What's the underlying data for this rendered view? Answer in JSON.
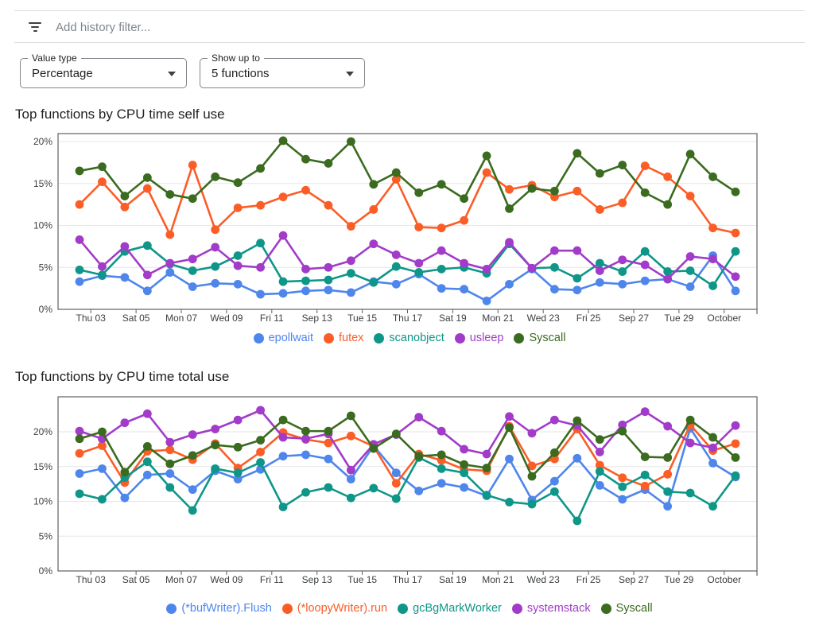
{
  "filter_bar": {
    "icon": "filter-list-icon",
    "placeholder": "Add history filter..."
  },
  "controls": {
    "value_type": {
      "label": "Value type",
      "value": "Percentage"
    },
    "show_up_to": {
      "label": "Show up to",
      "value": "5 functions"
    }
  },
  "chart_data": [
    {
      "type": "line",
      "title": "Top functions by CPU time self use",
      "x_tick_labels": [
        "Thu 03",
        "Sat 05",
        "Mon 07",
        "Wed 09",
        "Fri 11",
        "Sep 13",
        "Tue 15",
        "Thu 17",
        "Sat 19",
        "Mon 21",
        "Wed 23",
        "Fri 25",
        "Sep 27",
        "Tue 29",
        "October"
      ],
      "ytick_labels": [
        "0%",
        "5%",
        "10%",
        "15%",
        "20%"
      ],
      "yticks": [
        0,
        5,
        10,
        15,
        20
      ],
      "ylim": [
        0,
        20.95
      ],
      "grid": true,
      "legend_position": "bottom",
      "series": [
        {
          "name": "epollwait",
          "color": "#4E86EC",
          "values": [
            3.3,
            4.0,
            3.8,
            2.2,
            4.4,
            2.7,
            3.1,
            3.0,
            1.8,
            1.9,
            2.2,
            2.3,
            2.0,
            3.3,
            3.0,
            4.2,
            2.5,
            2.4,
            1.0,
            3.0,
            4.8,
            2.4,
            2.3,
            3.2,
            3.0,
            3.4,
            3.6,
            2.7,
            6.4,
            2.2
          ]
        },
        {
          "name": "futex",
          "color": "#FB5D27",
          "values": [
            12.5,
            15.2,
            12.2,
            14.4,
            8.9,
            17.2,
            9.5,
            12.1,
            12.4,
            13.4,
            14.2,
            12.4,
            9.9,
            11.9,
            15.5,
            9.8,
            9.7,
            10.6,
            16.3,
            14.3,
            14.8,
            13.4,
            14.1,
            11.9,
            12.7,
            17.1,
            15.8,
            13.5,
            9.7,
            9.1
          ]
        },
        {
          "name": "scanobject",
          "color": "#0E9688",
          "values": [
            4.7,
            4.1,
            6.9,
            7.6,
            5.4,
            4.6,
            5.1,
            6.4,
            7.9,
            3.3,
            3.4,
            3.5,
            4.3,
            3.2,
            5.1,
            4.4,
            4.8,
            5.0,
            4.3,
            7.8,
            4.9,
            5.0,
            3.7,
            5.5,
            4.5,
            6.9,
            4.5,
            4.6,
            2.8,
            6.9
          ]
        },
        {
          "name": "usleep",
          "color": "#A23BC9",
          "values": [
            8.3,
            5.1,
            7.5,
            4.1,
            5.5,
            6.0,
            7.4,
            5.2,
            5.0,
            8.8,
            4.8,
            5.0,
            5.8,
            7.8,
            6.5,
            5.5,
            7.0,
            5.5,
            4.8,
            8.0,
            4.9,
            7.0,
            7.0,
            4.6,
            5.9,
            5.3,
            3.6,
            6.3,
            6.0,
            3.9
          ]
        },
        {
          "name": "Syscall",
          "color": "#3A6B1F",
          "values": [
            16.5,
            17.0,
            13.5,
            15.7,
            13.7,
            13.2,
            15.8,
            15.1,
            16.8,
            20.1,
            17.9,
            17.4,
            20.0,
            14.9,
            16.3,
            13.9,
            14.9,
            13.2,
            18.3,
            12.0,
            14.4,
            14.1,
            18.6,
            16.2,
            17.2,
            13.9,
            12.5,
            18.5,
            15.8,
            14.0
          ]
        }
      ]
    },
    {
      "type": "line",
      "title": "Top functions by CPU time total use",
      "x_tick_labels": [
        "Thu 03",
        "Sat 05",
        "Mon 07",
        "Wed 09",
        "Fri 11",
        "Sep 13",
        "Tue 15",
        "Thu 17",
        "Sat 19",
        "Mon 21",
        "Wed 23",
        "Fri 25",
        "Sep 27",
        "Tue 29",
        "October"
      ],
      "ytick_labels": [
        "0%",
        "5%",
        "10%",
        "15%",
        "20%"
      ],
      "yticks": [
        0,
        5,
        10,
        15,
        20
      ],
      "ylim": [
        0,
        25.0
      ],
      "grid": true,
      "legend_position": "bottom",
      "series": [
        {
          "name": "(*bufWriter).Flush",
          "color": "#4E86EC",
          "values": [
            14.0,
            14.7,
            10.5,
            13.8,
            14.0,
            11.7,
            14.4,
            13.2,
            14.6,
            16.5,
            16.7,
            16.1,
            13.2,
            18.0,
            14.1,
            11.5,
            12.6,
            12.0,
            10.8,
            16.1,
            10.2,
            12.9,
            16.2,
            12.3,
            10.3,
            11.7,
            9.3,
            20.5,
            15.5,
            13.5
          ]
        },
        {
          "name": "(*loopyWriter).run",
          "color": "#FB5D27",
          "values": [
            16.9,
            18.0,
            12.7,
            17.2,
            17.4,
            16.0,
            18.3,
            14.8,
            17.1,
            19.9,
            18.9,
            18.4,
            19.4,
            17.9,
            12.6,
            16.8,
            15.9,
            14.6,
            14.4,
            20.8,
            15.1,
            16.1,
            20.4,
            15.2,
            13.4,
            12.2,
            13.9,
            21.0,
            17.3,
            18.3
          ]
        },
        {
          "name": "gcBgMarkWorker",
          "color": "#0E9688",
          "values": [
            11.1,
            10.3,
            13.4,
            15.7,
            12.0,
            8.7,
            14.7,
            14.1,
            15.6,
            9.2,
            11.3,
            12.0,
            10.5,
            11.9,
            10.4,
            16.3,
            14.7,
            14.1,
            10.9,
            9.9,
            9.6,
            11.4,
            7.2,
            14.3,
            12.1,
            13.8,
            11.4,
            11.2,
            9.3,
            13.7
          ]
        },
        {
          "name": "systemstack",
          "color": "#A23BC9",
          "values": [
            20.1,
            19.0,
            21.3,
            22.6,
            18.5,
            19.6,
            20.4,
            21.7,
            23.1,
            19.2,
            19.0,
            19.7,
            14.5,
            18.2,
            19.6,
            22.1,
            20.1,
            17.5,
            16.8,
            22.2,
            19.8,
            21.7,
            20.9,
            17.1,
            21.0,
            22.9,
            20.8,
            18.4,
            17.7,
            20.9
          ]
        },
        {
          "name": "Syscall",
          "color": "#3A6B1F",
          "values": [
            19.0,
            20.0,
            14.2,
            17.9,
            15.4,
            16.6,
            18.1,
            17.8,
            18.8,
            21.7,
            20.1,
            20.1,
            22.3,
            17.6,
            19.7,
            16.5,
            16.7,
            15.3,
            14.8,
            20.6,
            13.6,
            17.0,
            21.6,
            18.9,
            20.1,
            16.4,
            16.3,
            21.7,
            19.2,
            16.3
          ]
        }
      ]
    }
  ],
  "style": {
    "axis_color": "#616161",
    "grid_color": "#e6e6e6",
    "tick_label_color": "#3c4043"
  }
}
